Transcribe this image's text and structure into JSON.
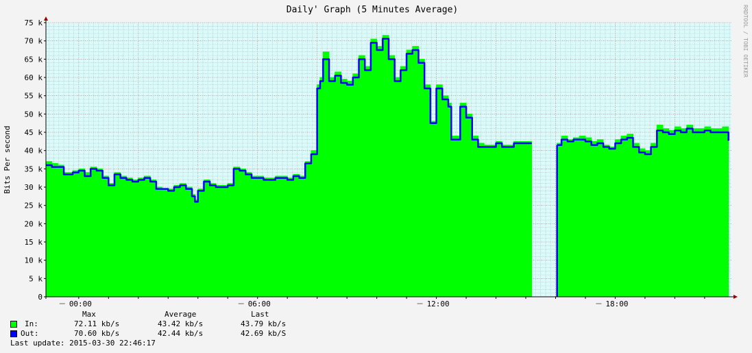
{
  "chart_data": {
    "type": "area",
    "title": "Daily' Graph (5 Minutes Average)",
    "ylabel": "Bits Per second",
    "watermark": "RRDTOOL / TOBI OETIKER",
    "ylim": [
      0,
      75000
    ],
    "xlim": [
      -1.1,
      21.9
    ],
    "y_ticks": [
      0,
      5000,
      10000,
      15000,
      20000,
      25000,
      30000,
      35000,
      40000,
      45000,
      50000,
      55000,
      60000,
      65000,
      70000,
      75000
    ],
    "y_tick_labels": [
      "0",
      "5 k",
      "10 k",
      "15 k",
      "20 k",
      "25 k",
      "30 k",
      "35 k",
      "40 k",
      "45 k",
      "50 k",
      "55 k",
      "60 k",
      "65 k",
      "70 k",
      "75 k"
    ],
    "x_ticks": [
      0,
      6,
      12,
      18
    ],
    "x_tick_labels": [
      "00:00",
      "06:00",
      "12:00",
      "18:00"
    ],
    "grid": true,
    "colors": {
      "in": "#00ff00",
      "out": "#0000ff",
      "plot_bg": "#ddfbfb",
      "grid": "#9cc8cc"
    },
    "series": [
      {
        "name": "In",
        "x": [
          -1.1,
          -0.9,
          -0.7,
          -0.5,
          -0.2,
          0.0,
          0.2,
          0.4,
          0.6,
          0.8,
          1.0,
          1.2,
          1.4,
          1.6,
          1.8,
          2.0,
          2.2,
          2.4,
          2.6,
          2.8,
          3.0,
          3.2,
          3.4,
          3.6,
          3.8,
          3.9,
          4.0,
          4.2,
          4.4,
          4.6,
          4.8,
          5.0,
          5.2,
          5.4,
          5.6,
          5.8,
          6.0,
          6.2,
          6.4,
          6.6,
          6.8,
          7.0,
          7.2,
          7.4,
          7.6,
          7.8,
          8.0,
          8.1,
          8.2,
          8.4,
          8.6,
          8.8,
          9.0,
          9.2,
          9.4,
          9.6,
          9.8,
          10.0,
          10.2,
          10.4,
          10.6,
          10.8,
          11.0,
          11.2,
          11.4,
          11.6,
          11.8,
          12.0,
          12.2,
          12.4,
          12.5,
          12.6,
          12.8,
          13.0,
          13.2,
          13.4,
          13.6,
          13.8,
          14.0,
          14.2,
          14.4,
          14.6,
          14.8,
          15.0,
          15.2
        ],
        "values": [
          37000,
          36500,
          36000,
          34000,
          34500,
          35000,
          34000,
          35500,
          35000,
          33000,
          31000,
          34000,
          33000,
          32500,
          32000,
          32500,
          33000,
          32000,
          30000,
          29500,
          29500,
          30500,
          31000,
          30000,
          28000,
          26500,
          29500,
          32000,
          31000,
          30500,
          30500,
          31000,
          35500,
          35000,
          34000,
          33000,
          33000,
          32500,
          32500,
          33000,
          33000,
          32500,
          33500,
          33000,
          37000,
          40000,
          58000,
          60000,
          67000,
          60000,
          61500,
          59500,
          59000,
          61000,
          66000,
          63000,
          70500,
          68500,
          71500,
          66000,
          60000,
          63000,
          67500,
          68500,
          65000,
          58000,
          48000,
          58000,
          55000,
          53000,
          44000,
          44000,
          53000,
          50000,
          44000,
          42000,
          41500,
          41500,
          42500,
          41500,
          41500,
          42500,
          42500,
          42500,
          42500
        ]
      },
      {
        "name": "Out",
        "x": [
          -1.1,
          -0.9,
          -0.7,
          -0.5,
          -0.2,
          0.0,
          0.2,
          0.4,
          0.6,
          0.8,
          1.0,
          1.2,
          1.4,
          1.6,
          1.8,
          2.0,
          2.2,
          2.4,
          2.6,
          2.8,
          3.0,
          3.2,
          3.4,
          3.6,
          3.8,
          3.9,
          4.0,
          4.2,
          4.4,
          4.6,
          4.8,
          5.0,
          5.2,
          5.4,
          5.6,
          5.8,
          6.0,
          6.2,
          6.4,
          6.6,
          6.8,
          7.0,
          7.2,
          7.4,
          7.6,
          7.8,
          8.0,
          8.1,
          8.2,
          8.4,
          8.6,
          8.8,
          9.0,
          9.2,
          9.4,
          9.6,
          9.8,
          10.0,
          10.2,
          10.4,
          10.6,
          10.8,
          11.0,
          11.2,
          11.4,
          11.6,
          11.8,
          12.0,
          12.2,
          12.4,
          12.5,
          12.6,
          12.8,
          13.0,
          13.2,
          13.4,
          13.6,
          13.8,
          14.0,
          14.2,
          14.4,
          14.6,
          14.8,
          15.0,
          15.2
        ],
        "values": [
          36000,
          35500,
          35500,
          33500,
          34000,
          34500,
          33000,
          35000,
          34500,
          32500,
          30500,
          33500,
          32500,
          32000,
          31500,
          32000,
          32500,
          31500,
          29500,
          29500,
          29000,
          30000,
          30500,
          29500,
          27500,
          26000,
          29000,
          31500,
          30500,
          30000,
          30000,
          30500,
          35000,
          34500,
          33500,
          32500,
          32500,
          32000,
          32000,
          32500,
          32500,
          32000,
          33000,
          32500,
          36500,
          39000,
          57000,
          59000,
          65000,
          59000,
          60500,
          58500,
          58000,
          60000,
          65000,
          62000,
          69500,
          67500,
          70600,
          65000,
          59000,
          62000,
          66500,
          67500,
          64000,
          57000,
          47500,
          57000,
          54000,
          52000,
          43000,
          43000,
          52000,
          49000,
          43000,
          41000,
          41000,
          41000,
          42000,
          41000,
          41000,
          42000,
          42000,
          42000,
          42000
        ]
      },
      {
        "name": "In",
        "x": [
          16.05,
          16.2,
          16.4,
          16.6,
          16.8,
          17.0,
          17.2,
          17.4,
          17.6,
          17.8,
          18.0,
          18.2,
          18.4,
          18.6,
          18.8,
          19.0,
          19.2,
          19.4,
          19.6,
          19.8,
          20.0,
          20.2,
          20.4,
          20.6,
          20.8,
          21.0,
          21.2,
          21.4,
          21.6,
          21.8
        ],
        "values": [
          42000,
          44000,
          43000,
          43500,
          44000,
          43500,
          42500,
          43000,
          41500,
          41000,
          43000,
          44000,
          44500,
          42000,
          40500,
          40000,
          42000,
          47000,
          46000,
          45500,
          46500,
          46000,
          47000,
          46000,
          46000,
          46500,
          46000,
          46000,
          46500,
          43500
        ]
      },
      {
        "name": "Out",
        "x": [
          16.05,
          16.2,
          16.4,
          16.6,
          16.8,
          17.0,
          17.2,
          17.4,
          17.6,
          17.8,
          18.0,
          18.2,
          18.4,
          18.6,
          18.8,
          19.0,
          19.2,
          19.4,
          19.6,
          19.8,
          20.0,
          20.2,
          20.4,
          20.6,
          20.8,
          21.0,
          21.2,
          21.4,
          21.6,
          21.8
        ],
        "values": [
          41500,
          43000,
          42500,
          43000,
          43000,
          42500,
          41500,
          42000,
          41000,
          40500,
          42000,
          43000,
          43500,
          41000,
          39500,
          39000,
          41000,
          45500,
          45000,
          44500,
          45500,
          45000,
          46000,
          45000,
          45000,
          45500,
          45000,
          45000,
          45000,
          42690
        ]
      }
    ]
  },
  "legend": {
    "headers": {
      "max": "Max",
      "average": "Average",
      "last": "Last"
    },
    "rows": [
      {
        "label": "In:",
        "color": "#00ff00",
        "max": "72.11 kb/s",
        "average": "43.42 kb/s",
        "last": "43.79 kb/s"
      },
      {
        "label": "Out:",
        "color": "#0000ff",
        "max": "70.60 kb/s",
        "average": "42.44 kb/s",
        "last": "42.69 kb/S"
      }
    ],
    "last_update": "Last update: 2015-03-30 22:46:17"
  }
}
